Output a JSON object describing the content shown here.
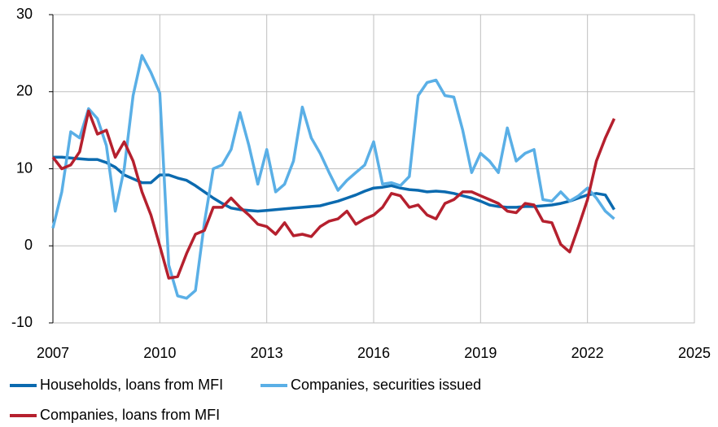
{
  "chart_data": {
    "type": "line",
    "x": [
      2007,
      2007.25,
      2007.5,
      2007.75,
      2008,
      2008.25,
      2008.5,
      2008.75,
      2009,
      2009.25,
      2009.5,
      2009.75,
      2010,
      2010.25,
      2010.5,
      2010.75,
      2011,
      2011.25,
      2011.5,
      2011.75,
      2012,
      2012.25,
      2012.5,
      2012.75,
      2013,
      2013.25,
      2013.5,
      2013.75,
      2014,
      2014.25,
      2014.5,
      2014.75,
      2015,
      2015.25,
      2015.5,
      2015.75,
      2016,
      2016.25,
      2016.5,
      2016.75,
      2017,
      2017.25,
      2017.5,
      2017.75,
      2018,
      2018.25,
      2018.5,
      2018.75,
      2019,
      2019.25,
      2019.5,
      2019.75,
      2020,
      2020.25,
      2020.5,
      2020.75,
      2021,
      2021.25,
      2021.5,
      2021.75,
      2022,
      2022.25,
      2022.5,
      2022.75
    ],
    "series": [
      {
        "name": "Households, loans from MFI",
        "color": "#0b6aaf",
        "values": [
          11.5,
          11.5,
          11.4,
          11.3,
          11.2,
          11.2,
          10.8,
          10.2,
          9.2,
          8.7,
          8.2,
          8.2,
          9.2,
          9.2,
          8.8,
          8.5,
          7.8,
          7,
          6.2,
          5.5,
          4.9,
          4.7,
          4.6,
          4.5,
          4.6,
          4.7,
          4.8,
          4.9,
          5,
          5.1,
          5.2,
          5.5,
          5.8,
          6.2,
          6.6,
          7.1,
          7.5,
          7.6,
          7.8,
          7.5,
          7.3,
          7.2,
          7,
          7.1,
          7,
          6.8,
          6.5,
          6.2,
          5.8,
          5.3,
          5.1,
          5,
          5,
          5.1,
          5.1,
          5.2,
          5.3,
          5.5,
          5.8,
          6.2,
          6.6,
          6.8,
          6.6,
          4.7
        ]
      },
      {
        "name": "Companies, securities issued",
        "color": "#5aafe6",
        "values": [
          2.3,
          7,
          14.8,
          14,
          17.8,
          16.5,
          13,
          4.5,
          10,
          19.5,
          24.7,
          22.5,
          19.8,
          -2.5,
          -6.5,
          -6.8,
          -5.8,
          3,
          10,
          10.5,
          12.5,
          17.3,
          13,
          8,
          12.5,
          7,
          8,
          11,
          18,
          14,
          12,
          9.5,
          7.2,
          8.5,
          9.5,
          10.5,
          13.5,
          8,
          8.2,
          7.8,
          9,
          19.5,
          21.2,
          21.5,
          19.5,
          19.3,
          15,
          9.5,
          12,
          11,
          9.5,
          15.3,
          11,
          12,
          12.5,
          6,
          5.8,
          7,
          5.8,
          6.5,
          7.5,
          6.2,
          4.5,
          3.5
        ]
      },
      {
        "name": "Companies, loans from MFI",
        "color": "#b5202e",
        "values": [
          11.5,
          10,
          10.5,
          12.2,
          17.5,
          14.5,
          15,
          11.5,
          13.5,
          11,
          7,
          4,
          0,
          -4.2,
          -4,
          -1,
          1.5,
          2,
          5,
          5,
          6.2,
          5,
          4,
          2.8,
          2.5,
          1.5,
          3,
          1.3,
          1.5,
          1.2,
          2.5,
          3.2,
          3.5,
          4.5,
          2.8,
          3.5,
          4,
          5,
          6.8,
          6.5,
          5,
          5.3,
          4,
          3.5,
          5.5,
          6,
          7,
          7,
          6.5,
          6,
          5.5,
          4.5,
          4.3,
          5.5,
          5.3,
          3.2,
          3,
          0.2,
          -0.8,
          2.5,
          6,
          11,
          14,
          16.5
        ]
      }
    ],
    "xlim": [
      2007,
      2025
    ],
    "xticks": [
      2007,
      2010,
      2013,
      2016,
      2019,
      2022,
      2025
    ],
    "ylim": [
      -10,
      30
    ],
    "yticks": [
      -10,
      0,
      10,
      20,
      30
    ],
    "grid": true,
    "legend": "bottom"
  }
}
